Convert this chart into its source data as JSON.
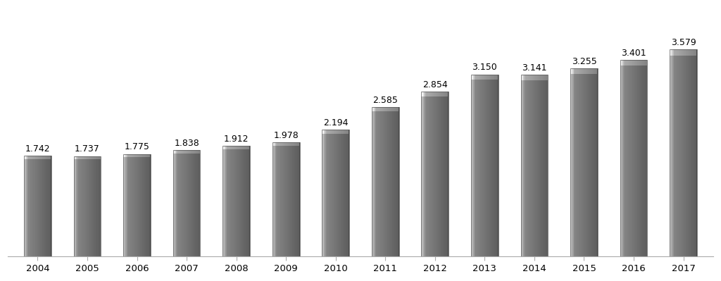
{
  "categories": [
    "2004",
    "2005",
    "2006",
    "2007",
    "2008",
    "2009",
    "2010",
    "2011",
    "2012",
    "2013",
    "2014",
    "2015",
    "2016",
    "2017"
  ],
  "values": [
    1.742,
    1.737,
    1.775,
    1.838,
    1.912,
    1.978,
    2.194,
    2.585,
    2.854,
    3.15,
    3.141,
    3.255,
    3.401,
    3.579
  ],
  "labels": [
    "1.742",
    "1.737",
    "1.775",
    "1.838",
    "1.912",
    "1.978",
    "2.194",
    "2.585",
    "2.854",
    "3.150",
    "3.141",
    "3.255",
    "3.401",
    "3.579"
  ],
  "bar_color_main": "#6d6d6d",
  "bar_color_light": "#a8a8a8",
  "bar_color_dark": "#4a4a4a",
  "background_color": "#ffffff",
  "label_fontsize": 9,
  "tick_fontsize": 9.5,
  "ylim": [
    0,
    4.3
  ],
  "bar_width": 0.55,
  "gradient_steps": 50
}
